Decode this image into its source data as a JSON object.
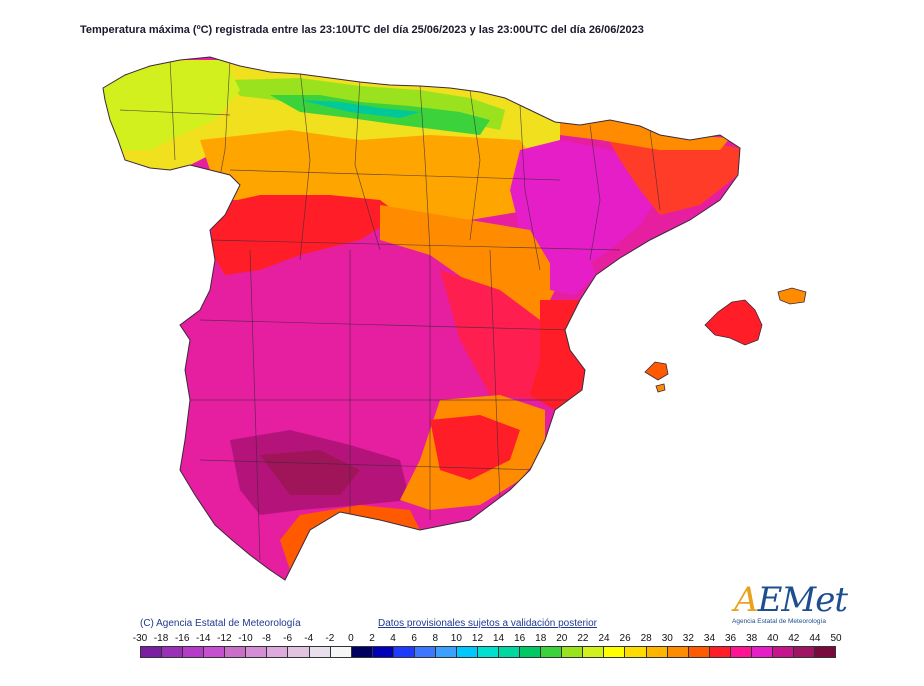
{
  "title": "Temperatura máxima (ºC) registrada entre las 23:10UTC del día 25/06/2023 y las 23:00UTC del día 26/06/2023",
  "credit": "(C) Agencia Estatal de Meteorología",
  "disclaimer": "Datos provisionales sujetos a validación posterior",
  "logo": {
    "wordmark_a": "A",
    "wordmark_rest": "EMet",
    "subtitle": "Agencia Estatal de Meteorología"
  },
  "legend": {
    "ticks": [
      "-30",
      "-18",
      "-16",
      "-14",
      "-12",
      "-10",
      "-8",
      "-6",
      "-4",
      "-2",
      "0",
      "2",
      "4",
      "6",
      "8",
      "10",
      "12",
      "14",
      "16",
      "18",
      "20",
      "22",
      "24",
      "26",
      "28",
      "30",
      "32",
      "34",
      "36",
      "38",
      "40",
      "42",
      "44",
      "50"
    ],
    "colors": [
      "#7a1fa2",
      "#9b30b8",
      "#b43cc8",
      "#c54fd0",
      "#c96fc8",
      "#d58ed6",
      "#dcaadc",
      "#e0c4e0",
      "#e8e0ec",
      "#f6f6f6",
      "#000060",
      "#0000b8",
      "#1e3cff",
      "#3c78ff",
      "#3ca0ff",
      "#00c8ff",
      "#00e0d0",
      "#00d8a0",
      "#00c864",
      "#3cd23c",
      "#9be21e",
      "#d2ef1e",
      "#ffff00",
      "#ffdc00",
      "#ffb400",
      "#ff8c00",
      "#ff5a00",
      "#ff1e28",
      "#ff1493",
      "#e61ec8",
      "#c8148c",
      "#a01464",
      "#7a0a3c"
    ]
  },
  "map": {
    "regions": [
      "spain-mainland",
      "mallorca",
      "menorca",
      "ibiza",
      "formentera"
    ],
    "bands": [
      "peninsula-base",
      "north-coast-cool",
      "cantabrian-mountains",
      "northern-plateau",
      "ebro-valley",
      "catalonia",
      "duero-hot",
      "central-hot",
      "south-extreme",
      "valencia-coast",
      "murcia-coast",
      "balearics-hot"
    ]
  }
}
